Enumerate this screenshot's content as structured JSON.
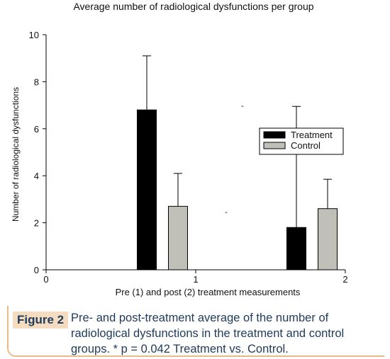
{
  "chart_data": {
    "type": "bar",
    "title": "Average number of radiological dysfunctions per group",
    "xlabel": "Pre (1) and post (2) treatment measurements",
    "ylabel": "Number of radiological dysfunctions",
    "categories": [
      "1",
      "2"
    ],
    "x_ticks": [
      "0",
      "1",
      "2"
    ],
    "y_ticks": [
      "0",
      "2",
      "4",
      "6",
      "8",
      "10"
    ],
    "ylim": [
      0,
      10
    ],
    "series": [
      {
        "name": "Treatment",
        "color": "#000000",
        "values": [
          6.8,
          1.8
        ],
        "error_upper": [
          9.1,
          6.95
        ]
      },
      {
        "name": "Control",
        "color": "#c0c0b8",
        "values": [
          2.7,
          2.6
        ],
        "error_upper": [
          4.1,
          3.85
        ]
      }
    ],
    "annotation_marks": [
      "-",
      "-"
    ],
    "legend_position": "right",
    "grid": false
  },
  "caption": {
    "label": "Figure 2",
    "text": "Pre- and post-treatment average of the number of radiological dysfunctions in the treatment and control groups. * p = 0.042 Treatment vs. Control."
  }
}
